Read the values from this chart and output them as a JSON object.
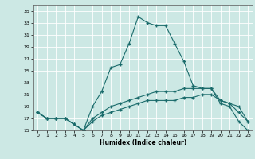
{
  "xlabel": "Humidex (Indice chaleur)",
  "bg_color": "#cce8e4",
  "grid_color": "#ffffff",
  "line_color": "#1a6b6b",
  "xlim": [
    -0.5,
    23.5
  ],
  "ylim": [
    15,
    36
  ],
  "xticks": [
    0,
    1,
    2,
    3,
    4,
    5,
    6,
    7,
    8,
    9,
    10,
    11,
    12,
    13,
    14,
    15,
    16,
    17,
    18,
    19,
    20,
    21,
    22,
    23
  ],
  "yticks": [
    15,
    17,
    19,
    21,
    23,
    25,
    27,
    29,
    31,
    33,
    35
  ],
  "line1_x": [
    0,
    1,
    2,
    3,
    4,
    5,
    6,
    7,
    8,
    9,
    10,
    11,
    12,
    13,
    14,
    15,
    16,
    17,
    18,
    19,
    20,
    21,
    22,
    23
  ],
  "line1_y": [
    18,
    17,
    17,
    17,
    16,
    15,
    19,
    21.5,
    25.5,
    26,
    29.5,
    34,
    33,
    32.5,
    32.5,
    29.5,
    26.5,
    22.5,
    22,
    22,
    19.5,
    19,
    16.5,
    15
  ],
  "line2_x": [
    0,
    1,
    2,
    3,
    4,
    5,
    6,
    7,
    8,
    9,
    10,
    11,
    12,
    13,
    14,
    15,
    16,
    17,
    18,
    19,
    20,
    21,
    22,
    23
  ],
  "line2_y": [
    18,
    17,
    17,
    17,
    16,
    15,
    17,
    18,
    19,
    19.5,
    20,
    20.5,
    21,
    21.5,
    21.5,
    21.5,
    22,
    22,
    22,
    22,
    20,
    19.5,
    19,
    16.5
  ],
  "line3_x": [
    0,
    1,
    2,
    3,
    4,
    5,
    6,
    7,
    8,
    9,
    10,
    11,
    12,
    13,
    14,
    15,
    16,
    17,
    18,
    19,
    20,
    21,
    22,
    23
  ],
  "line3_y": [
    18,
    17,
    17,
    17,
    16,
    15,
    16.5,
    17.5,
    18,
    18.5,
    19,
    19.5,
    20,
    20,
    20,
    20,
    20.5,
    20.5,
    21,
    21,
    20,
    19.5,
    18,
    16.5
  ]
}
